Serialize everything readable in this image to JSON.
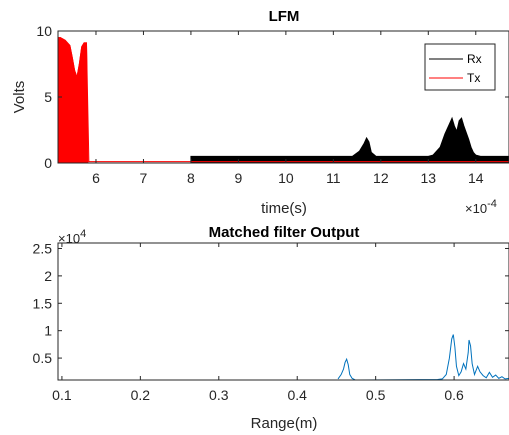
{
  "chart_data": [
    {
      "type": "line",
      "title": "LFM",
      "xlabel": "time(s)",
      "ylabel": "Volts",
      "x_exponent_label": "×10",
      "x_exponent_power": "-4",
      "x_scale": 0.0001,
      "xlim": [
        5.2,
        14.7
      ],
      "ylim": [
        0,
        10
      ],
      "x_ticks": [
        6,
        7,
        8,
        9,
        10,
        11,
        12,
        13,
        14
      ],
      "x_tick_labels": [
        "6",
        "7",
        "8",
        "9",
        "10",
        "11",
        "12",
        "13",
        "14"
      ],
      "y_ticks": [
        0,
        5,
        10
      ],
      "y_tick_labels": [
        "0",
        "5",
        "10"
      ],
      "grid": false,
      "legend_position": "top-right",
      "series": [
        {
          "name": "Rx",
          "color": "#000000",
          "x": [
            8.0,
            9.0,
            10.0,
            11.0,
            11.4,
            11.55,
            11.65,
            11.7,
            11.75,
            11.8,
            11.9,
            12.0,
            13.0,
            13.1,
            13.25,
            13.35,
            13.45,
            13.5,
            13.55,
            13.6,
            13.65,
            13.7,
            13.75,
            13.8,
            13.85,
            13.9,
            13.95,
            14.0,
            14.1,
            14.3,
            14.5,
            14.7
          ],
          "y": [
            0.5,
            0.5,
            0.5,
            0.5,
            0.5,
            0.9,
            1.5,
            1.9,
            1.6,
            0.8,
            0.5,
            0.5,
            0.5,
            0.6,
            1.2,
            2.2,
            3.0,
            3.4,
            2.8,
            2.4,
            3.2,
            3.4,
            2.8,
            2.3,
            1.8,
            1.2,
            0.8,
            0.6,
            0.5,
            0.5,
            0.5,
            0.5
          ]
        },
        {
          "name": "Tx",
          "color": "#ff0000",
          "x": [
            5.2,
            5.25,
            5.35,
            5.45,
            5.5,
            5.55,
            5.6,
            5.65,
            5.7,
            5.75,
            5.8,
            5.85,
            5.9,
            5.95,
            6.0,
            7.0,
            8.0,
            9.0,
            10.0,
            11.0,
            12.0,
            13.0,
            14.0,
            14.7
          ],
          "y": [
            9.5,
            9.5,
            9.3,
            8.9,
            8.0,
            7.0,
            6.5,
            7.5,
            8.8,
            9.1,
            9.1,
            0.1,
            0.1,
            0.1,
            0.1,
            0.1,
            0.1,
            0.1,
            0.1,
            0.1,
            0.1,
            0.1,
            0.1,
            0.1
          ],
          "filled": true,
          "filled_x_range": [
            5.2,
            5.83
          ]
        }
      ]
    },
    {
      "type": "line",
      "title": "Matched filter Output",
      "xlabel": "Range(m)",
      "ylabel": "",
      "y_exponent_label": "×10",
      "y_exponent_power": "4",
      "y_scale": 10000,
      "xlim": [
        0.095,
        0.67
      ],
      "ylim": [
        0.1,
        2.6
      ],
      "x_ticks": [
        0.1,
        0.2,
        0.3,
        0.4,
        0.5,
        0.6
      ],
      "x_tick_labels": [
        "0.1",
        "0.2",
        "0.3",
        "0.4",
        "0.5",
        "0.6"
      ],
      "y_ticks": [
        0.5,
        1,
        1.5,
        2,
        2.5
      ],
      "y_tick_labels": [
        "0.5",
        "1",
        "1.5",
        "2",
        "2.5"
      ],
      "grid": false,
      "series": [
        {
          "color": "#0072bd",
          "x": [
            0.452,
            0.456,
            0.459,
            0.461,
            0.463,
            0.465,
            0.467,
            0.47,
            0.474,
            0.579,
            0.585,
            0.59,
            0.594,
            0.597,
            0.599,
            0.601,
            0.603,
            0.606,
            0.609,
            0.612,
            0.615,
            0.618,
            0.619,
            0.621,
            0.623,
            0.626,
            0.63,
            0.633,
            0.637,
            0.641,
            0.645,
            0.649,
            0.653,
            0.657,
            0.661,
            0.665,
            0.67
          ],
          "y": [
            0.12,
            0.2,
            0.3,
            0.42,
            0.48,
            0.38,
            0.2,
            0.13,
            0.1,
            0.11,
            0.12,
            0.2,
            0.5,
            0.85,
            0.93,
            0.7,
            0.35,
            0.18,
            0.25,
            0.4,
            0.3,
            0.6,
            0.83,
            0.72,
            0.4,
            0.2,
            0.35,
            0.25,
            0.18,
            0.14,
            0.24,
            0.15,
            0.19,
            0.13,
            0.16,
            0.12,
            0.13
          ]
        }
      ]
    }
  ]
}
